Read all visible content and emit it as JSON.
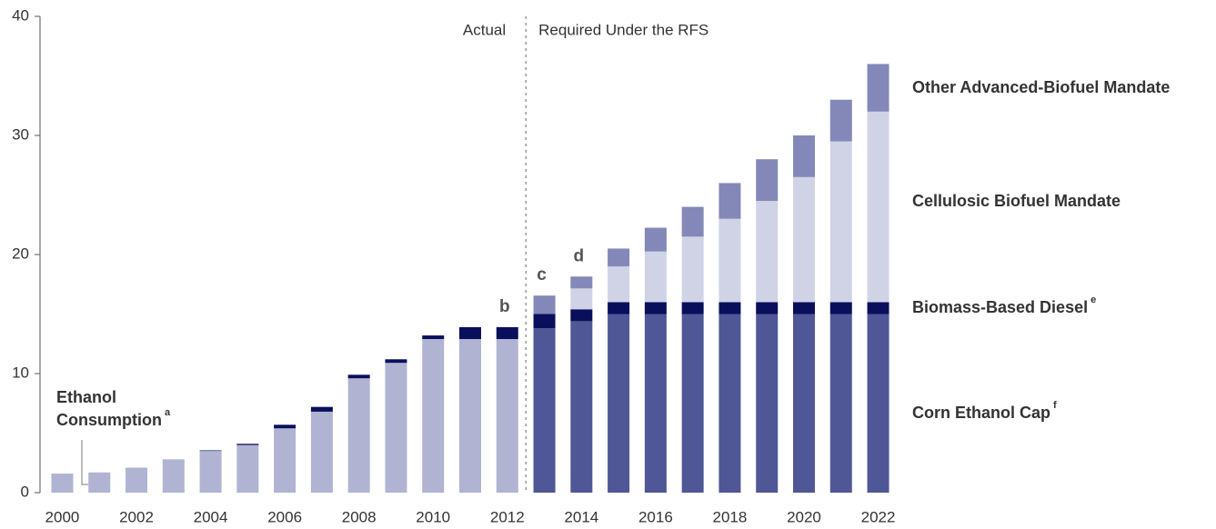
{
  "chart_data": {
    "type": "bar",
    "x": [
      2000,
      2001,
      2002,
      2003,
      2004,
      2005,
      2006,
      2007,
      2008,
      2009,
      2010,
      2011,
      2012,
      2013,
      2014,
      2015,
      2016,
      2017,
      2018,
      2019,
      2020,
      2021,
      2022
    ],
    "xlim": [
      1999.4,
      2022.6
    ],
    "xticks": [
      2000,
      2002,
      2004,
      2006,
      2008,
      2010,
      2012,
      2014,
      2016,
      2018,
      2020,
      2022
    ],
    "ylim": [
      0,
      40
    ],
    "yticks": [
      0,
      10,
      20,
      30,
      40
    ],
    "stacked": true,
    "series": [
      {
        "name": "Ethanol Consumption",
        "note": "a",
        "color": "#b0b3d1",
        "values": [
          1.6,
          1.7,
          2.1,
          2.8,
          3.5,
          4.0,
          5.4,
          6.8,
          9.6,
          10.9,
          12.9,
          12.9,
          12.9,
          null,
          null,
          null,
          null,
          null,
          null,
          null,
          null,
          null,
          null
        ]
      },
      {
        "name": "Corn Ethanol Cap",
        "note": "f",
        "color": "#4f5796",
        "values": [
          null,
          null,
          null,
          null,
          null,
          null,
          null,
          null,
          null,
          null,
          null,
          null,
          null,
          13.8,
          14.4,
          15,
          15,
          15,
          15,
          15,
          15,
          15,
          15
        ]
      },
      {
        "name": "Biomass-Based Diesel",
        "note": "e",
        "color": "#0a0f5c",
        "values": [
          0,
          0,
          0,
          0,
          0.05,
          0.1,
          0.3,
          0.4,
          0.3,
          0.3,
          0.3,
          1.0,
          1.0,
          1.2,
          1.0,
          1,
          1,
          1,
          1,
          1,
          1,
          1,
          1
        ]
      },
      {
        "name": "Cellulosic Biofuel Mandate",
        "color": "#d0d3e6",
        "values": [
          null,
          null,
          null,
          null,
          null,
          null,
          null,
          null,
          null,
          null,
          null,
          null,
          null,
          0,
          1.75,
          3,
          4.25,
          5.5,
          7,
          8.5,
          10.5,
          13.5,
          16
        ]
      },
      {
        "name": "Other Advanced-Biofuel Mandate",
        "color": "#8488b8",
        "values": [
          null,
          null,
          null,
          null,
          null,
          null,
          null,
          null,
          null,
          null,
          null,
          null,
          null,
          1.55,
          1.0,
          1.5,
          2.0,
          2.5,
          3,
          3.5,
          3.5,
          3.5,
          4
        ]
      }
    ],
    "region_labels": [
      "Actual",
      "Required Under the RFS"
    ],
    "annotations": [
      {
        "text": "b",
        "x": 2012
      },
      {
        "text": "c",
        "x": 2013
      },
      {
        "text": "d",
        "x": 2014
      }
    ]
  }
}
